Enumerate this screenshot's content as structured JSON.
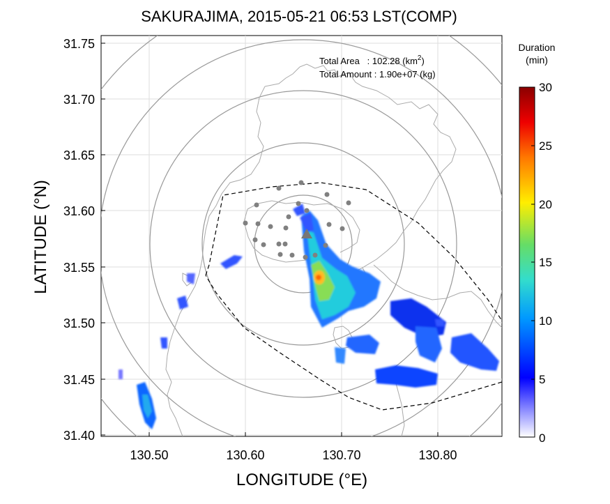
{
  "title": "SAKURAJIMA, 2015-05-21 06:53 LST(COMP)",
  "stats": {
    "total_area_label": "Total Area   : 102.28 (km",
    "total_area_sup": "2",
    "total_area_tail": ")",
    "total_amount": "Total Amount : 1.90e+07 (kg)"
  },
  "colorbar": {
    "title_line1": "Duration",
    "title_line2": "(min)",
    "ticks": [
      "30",
      "25",
      "20",
      "15",
      "10",
      "5",
      "0"
    ]
  },
  "chart_data": {
    "type": "heatmap",
    "title": "SAKURAJIMA, 2015-05-21 06:53 LST(COMP)",
    "xlabel": "LONGITUDE (°E)",
    "ylabel": "LATITUDE (°N)",
    "xlim": [
      130.45,
      130.865
    ],
    "ylim": [
      31.397,
      31.758
    ],
    "x_ticks": [
      "130.50",
      "130.60",
      "130.70",
      "130.80"
    ],
    "y_ticks": [
      "31.75",
      "31.70",
      "31.65",
      "31.60",
      "31.55",
      "31.50",
      "31.45",
      "31.40"
    ],
    "colorbar": {
      "label": "Duration (min)",
      "range": [
        0,
        30
      ],
      "ticks": [
        0,
        5,
        10,
        15,
        20,
        25,
        30
      ]
    },
    "grid": true,
    "legend": "none",
    "range_rings_center": [
      130.66,
      31.58
    ],
    "vent": [
      130.66,
      31.585
    ],
    "ash_patches": [
      {
        "lon": 130.685,
        "lat": 31.535,
        "duration_min": 12
      },
      {
        "lon": 130.672,
        "lat": 31.545,
        "duration_min": 18
      },
      {
        "lon": 130.667,
        "lat": 31.565,
        "duration_min": 10
      },
      {
        "lon": 130.712,
        "lat": 31.505,
        "duration_min": 7
      },
      {
        "lon": 130.757,
        "lat": 31.51,
        "duration_min": 5
      },
      {
        "lon": 130.79,
        "lat": 31.485,
        "duration_min": 5
      },
      {
        "lon": 130.822,
        "lat": 31.462,
        "duration_min": 4
      },
      {
        "lon": 130.76,
        "lat": 31.448,
        "duration_min": 5
      },
      {
        "lon": 130.72,
        "lat": 31.475,
        "duration_min": 5
      },
      {
        "lon": 130.508,
        "lat": 31.424,
        "duration_min": 8
      },
      {
        "lon": 130.54,
        "lat": 31.52,
        "duration_min": 4
      },
      {
        "lon": 130.585,
        "lat": 31.558,
        "duration_min": 3
      }
    ]
  }
}
